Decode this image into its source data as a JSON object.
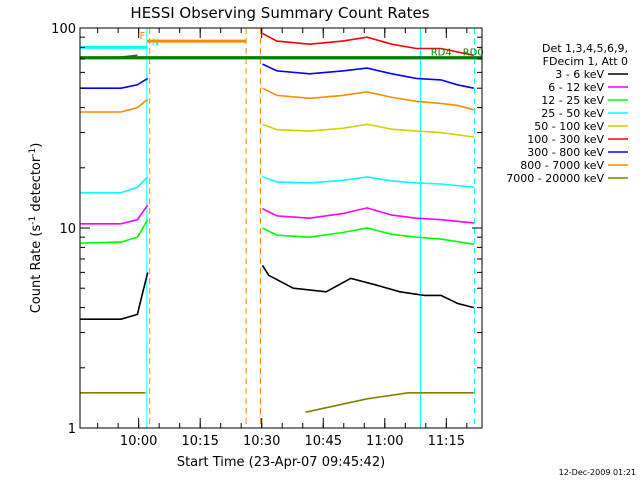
{
  "chart_data": {
    "type": "line",
    "title": "HESSI Observing Summary Count Rates",
    "xlabel": "Start Time (23-Apr-07 09:45:42)",
    "ylabel_main": "Count Rate (s",
    "ylabel_sup": "-1",
    "ylabel_tail": " detector",
    "ylabel_end": ")",
    "yscale": "log",
    "ylim": [
      1,
      100
    ],
    "xlim_minutes": [
      0,
      98
    ],
    "x_ticks": [
      {
        "m": 14.3,
        "label": "10:00"
      },
      {
        "m": 29.3,
        "label": "10:15"
      },
      {
        "m": 44.3,
        "label": "10:30"
      },
      {
        "m": 59.3,
        "label": "10:45"
      },
      {
        "m": 74.3,
        "label": "11:00"
      },
      {
        "m": 89.3,
        "label": "11:15"
      }
    ],
    "y_ticks": [
      {
        "v": 1,
        "label": "1"
      },
      {
        "v": 10,
        "label": "10"
      },
      {
        "v": 100,
        "label": "100"
      }
    ],
    "legend_header": [
      "Det 1,3,4,5,6,9,",
      "FDecim 1, Att 0"
    ],
    "series": [
      {
        "name": "3 - 6 keV",
        "color": "#000000",
        "segments": [
          [
            [
              0,
              3.5
            ],
            [
              10,
              3.5
            ],
            [
              14,
              3.7
            ],
            [
              15,
              4.5
            ],
            [
              16.5,
              6
            ]
          ],
          [
            [
              44.5,
              6.5
            ],
            [
              46,
              5.8
            ],
            [
              52,
              5
            ],
            [
              60,
              4.8
            ],
            [
              66,
              5.6
            ],
            [
              72,
              5.2
            ],
            [
              78,
              4.8
            ],
            [
              84,
              4.6
            ],
            [
              88,
              4.6
            ],
            [
              92,
              4.2
            ],
            [
              96,
              4.0
            ]
          ]
        ]
      },
      {
        "name": "6 - 12 keV",
        "color": "#ff00ff",
        "segments": [
          [
            [
              0,
              10.5
            ],
            [
              10,
              10.5
            ],
            [
              14,
              11
            ],
            [
              16.5,
              13
            ]
          ],
          [
            [
              44.5,
              12.5
            ],
            [
              48,
              11.5
            ],
            [
              56,
              11.2
            ],
            [
              64,
              11.8
            ],
            [
              70,
              12.6
            ],
            [
              76,
              11.6
            ],
            [
              82,
              11.2
            ],
            [
              88,
              11
            ],
            [
              96,
              10.6
            ]
          ]
        ]
      },
      {
        "name": "12 - 25 keV",
        "color": "#00ff00",
        "segments": [
          [
            [
              0,
              8.4
            ],
            [
              10,
              8.5
            ],
            [
              14,
              9
            ],
            [
              16.5,
              11
            ]
          ],
          [
            [
              44.5,
              10
            ],
            [
              48,
              9.2
            ],
            [
              56,
              9
            ],
            [
              64,
              9.5
            ],
            [
              70,
              10
            ],
            [
              76,
              9.3
            ],
            [
              82,
              9
            ],
            [
              88,
              8.8
            ],
            [
              96,
              8.3
            ]
          ]
        ]
      },
      {
        "name": "25 - 50 keV",
        "color": "#00ffff",
        "segments": [
          [
            [
              0,
              15
            ],
            [
              10,
              15
            ],
            [
              14,
              16
            ],
            [
              16.5,
              18
            ]
          ],
          [
            [
              44.5,
              18
            ],
            [
              48,
              17
            ],
            [
              56,
              16.8
            ],
            [
              64,
              17.3
            ],
            [
              70,
              18
            ],
            [
              76,
              17.2
            ],
            [
              82,
              16.8
            ],
            [
              88,
              16.6
            ],
            [
              96,
              16
            ]
          ]
        ]
      },
      {
        "name": "50 - 100 keV",
        "color": "#d2d200",
        "segments": [
          [
            [
              44.5,
              33
            ],
            [
              48,
              31
            ],
            [
              56,
              30.5
            ],
            [
              64,
              31.5
            ],
            [
              70,
              33
            ],
            [
              76,
              31.2
            ],
            [
              82,
              30.5
            ],
            [
              88,
              30
            ],
            [
              96,
              28.5
            ]
          ]
        ]
      },
      {
        "name": "100 - 300 keV",
        "color": "#ff0000",
        "segments": [
          [
            [
              0,
              71
            ],
            [
              10,
              71.5
            ],
            [
              14,
              73
            ]
          ],
          [
            [
              44.5,
              94
            ],
            [
              48,
              86
            ],
            [
              56,
              83
            ],
            [
              64,
              86
            ],
            [
              70,
              90
            ],
            [
              76,
              83
            ],
            [
              82,
              79
            ],
            [
              88,
              79
            ],
            [
              96,
              73
            ]
          ]
        ]
      },
      {
        "name": "300 - 800 keV",
        "color": "#0000ff",
        "segments": [
          [
            [
              0,
              50
            ],
            [
              10,
              50
            ],
            [
              14,
              52
            ],
            [
              16.5,
              56
            ]
          ],
          [
            [
              44.5,
              66
            ],
            [
              48,
              61
            ],
            [
              56,
              59
            ],
            [
              64,
              61
            ],
            [
              70,
              63
            ],
            [
              76,
              59
            ],
            [
              82,
              56
            ],
            [
              88,
              55
            ],
            [
              92,
              52
            ],
            [
              96,
              50
            ]
          ]
        ]
      },
      {
        "name": "800 - 7000 keV",
        "color": "#ff8c00",
        "segments": [
          [
            [
              0,
              38
            ],
            [
              10,
              38
            ],
            [
              14,
              40
            ],
            [
              16.5,
              44
            ]
          ],
          [
            [
              44.5,
              50
            ],
            [
              48,
              46
            ],
            [
              56,
              44.5
            ],
            [
              64,
              46
            ],
            [
              70,
              48
            ],
            [
              76,
              45
            ],
            [
              82,
              43
            ],
            [
              88,
              42
            ],
            [
              92,
              41
            ],
            [
              96,
              39
            ]
          ]
        ]
      },
      {
        "name": "7000 - 20000 keV",
        "color": "#808000",
        "segments": [
          [
            [
              0,
              1.5
            ],
            [
              16,
              1.5
            ]
          ],
          [
            [
              55,
              1.2
            ],
            [
              70,
              1.4
            ],
            [
              80,
              1.5
            ],
            [
              96,
              1.5
            ]
          ]
        ]
      }
    ],
    "markers": [
      {
        "m": 0,
        "style": "solid",
        "color": "#00ffff"
      },
      {
        "m": 16.3,
        "style": "solid",
        "color": "#00ffff"
      },
      {
        "m": 17.0,
        "style": "dashed",
        "color": "#ff8c00"
      },
      {
        "m": 40.5,
        "style": "dashed",
        "color": "#ff8c00"
      },
      {
        "m": 44.0,
        "style": "dashed",
        "color": "#ff8c00"
      },
      {
        "m": 83.0,
        "style": "solid",
        "color": "#00ffff"
      },
      {
        "m": 96.2,
        "style": "dashed",
        "color": "#00ffff"
      }
    ],
    "annotations": [
      {
        "label": "N",
        "color": "#00ffff",
        "x0": 0,
        "x1": 16.3,
        "y": 80,
        "text_m": 17.5
      },
      {
        "label": "RD0",
        "color": "#008000",
        "x0": 0,
        "x1": 98,
        "y": 71,
        "text_m": 93.3
      },
      {
        "label": "RD4",
        "color": "#008000",
        "x0": 0,
        "x1": 98,
        "y": 71,
        "text_m": 85.5
      },
      {
        "label": "F",
        "color": "#ff8c00",
        "x0": 16.3,
        "x1": 40.5,
        "y": 86,
        "text_m": 14.5
      }
    ],
    "footer": "12-Dec-2009 01:21"
  }
}
